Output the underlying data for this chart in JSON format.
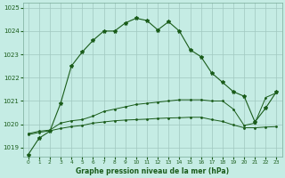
{
  "title": "Graphe pression niveau de la mer (hPa)",
  "bg_color": "#c5ece4",
  "grid_color": "#a0c8c0",
  "line_color": "#1a5c1a",
  "ylim": [
    1018.6,
    1025.2
  ],
  "yticks": [
    1019,
    1020,
    1021,
    1022,
    1023,
    1024,
    1025
  ],
  "x_labels": [
    "0",
    "1",
    "2",
    "3",
    "4",
    "5",
    "6",
    "7",
    "8",
    "9",
    "10",
    "11",
    "12",
    "13",
    "14",
    "15",
    "16",
    "17",
    "18",
    "19",
    "20",
    "21",
    "22",
    "23"
  ],
  "series1": [
    1018.7,
    1019.4,
    1019.7,
    1020.9,
    1022.5,
    1023.1,
    1023.6,
    1024.0,
    1024.0,
    1024.35,
    1024.55,
    1024.45,
    1024.05,
    1024.4,
    1024.0,
    1023.2,
    1022.9,
    1022.2,
    1021.8,
    1021.4,
    1021.2,
    1020.1,
    1020.7,
    1021.4
  ],
  "series2": [
    1019.6,
    1019.7,
    1019.75,
    1020.05,
    1020.15,
    1020.2,
    1020.35,
    1020.55,
    1020.65,
    1020.75,
    1020.85,
    1020.9,
    1020.95,
    1021.0,
    1021.05,
    1021.05,
    1021.05,
    1021.0,
    1021.0,
    1020.65,
    1019.95,
    1020.05,
    1021.15,
    1021.35
  ],
  "series3": [
    1019.55,
    1019.65,
    1019.72,
    1019.82,
    1019.9,
    1019.95,
    1020.05,
    1020.1,
    1020.15,
    1020.18,
    1020.2,
    1020.22,
    1020.25,
    1020.27,
    1020.28,
    1020.3,
    1020.3,
    1020.2,
    1020.12,
    1019.97,
    1019.85,
    1019.85,
    1019.88,
    1019.9
  ]
}
